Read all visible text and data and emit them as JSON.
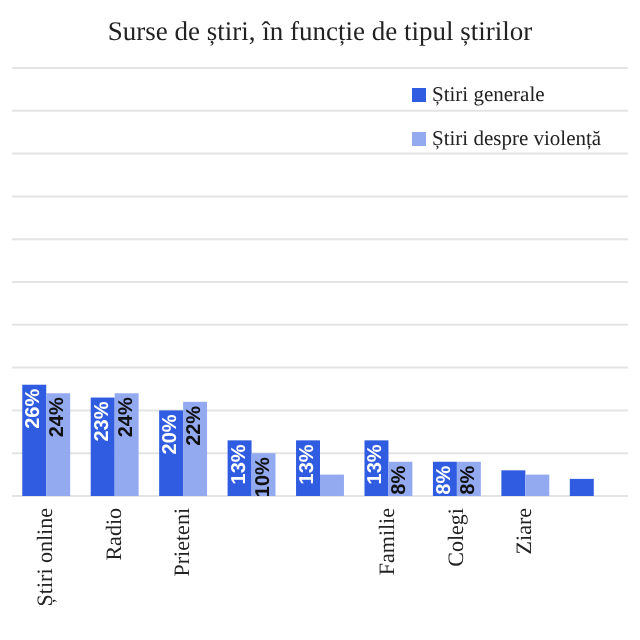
{
  "chart_data": {
    "type": "bar",
    "title": "Surse de știri, în funcție de tipul știrilor",
    "categories": [
      "Știri online",
      "Radio",
      "Prieteni",
      null,
      null,
      "Familie",
      "Colegi",
      "Ziare",
      null
    ],
    "series": [
      {
        "name": "Știri generale",
        "color": "#2f5ce0",
        "values": [
          26,
          23,
          20,
          13,
          13,
          13,
          8,
          6,
          4
        ],
        "value_labels": [
          "26%",
          "23%",
          "20%",
          "13%",
          "13%",
          "13%",
          "8%",
          null,
          null
        ]
      },
      {
        "name": "Știri despre violență",
        "color": "#93aaf0",
        "values": [
          24,
          24,
          22,
          10,
          5,
          8,
          8,
          5,
          null
        ],
        "value_labels": [
          "24%",
          "24%",
          "22%",
          "10%",
          null,
          "8%",
          "8%",
          null,
          null
        ]
      }
    ],
    "ylim": [
      0,
      100
    ],
    "yticks": [
      {
        "value": 0,
        "label": null
      },
      {
        "value": 10,
        "label": null
      },
      {
        "value": 20,
        "label": null
      },
      {
        "value": 30,
        "label": null
      },
      {
        "value": 40,
        "label": null
      },
      {
        "value": 50,
        "label": null
      },
      {
        "value": 60,
        "label": null
      },
      {
        "value": 70,
        "label": null
      },
      {
        "value": 80,
        "label": null
      },
      {
        "value": 90,
        "label": null
      },
      {
        "value": 100,
        "label": null
      }
    ],
    "grid": "y",
    "legend": "top right",
    "tick_labels": "x"
  }
}
